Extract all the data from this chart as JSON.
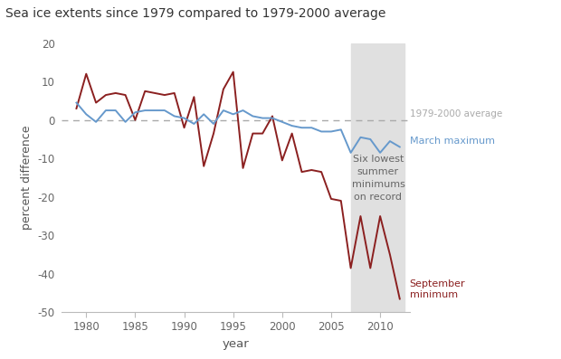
{
  "title": "Sea ice extents since 1979 compared to 1979-2000 average",
  "xlabel": "year",
  "ylabel": "percent difference",
  "ylim": [
    -50,
    20
  ],
  "yticks": [
    -50,
    -40,
    -30,
    -20,
    -10,
    0,
    10,
    20
  ],
  "background_color": "#ffffff",
  "march_color": "#6699cc",
  "september_color": "#8B2020",
  "avg_line_color": "#aaaaaa",
  "shade_start": 2007,
  "shade_end": 2012.5,
  "shade_color": "#e0e0e0",
  "march_years": [
    1979,
    1980,
    1981,
    1982,
    1983,
    1984,
    1985,
    1986,
    1987,
    1988,
    1989,
    1990,
    1991,
    1992,
    1993,
    1994,
    1995,
    1996,
    1997,
    1998,
    1999,
    2000,
    2001,
    2002,
    2003,
    2004,
    2005,
    2006,
    2007,
    2008,
    2009,
    2010,
    2011,
    2012
  ],
  "march_values": [
    4.5,
    1.5,
    -0.5,
    2.5,
    2.5,
    -0.5,
    2.0,
    2.5,
    2.5,
    2.5,
    1.0,
    0.5,
    -1.0,
    1.5,
    -1.0,
    2.5,
    1.5,
    2.5,
    1.0,
    0.5,
    0.5,
    -0.5,
    -1.5,
    -2.0,
    -2.0,
    -3.0,
    -3.0,
    -2.5,
    -8.5,
    -4.5,
    -5.0,
    -8.5,
    -5.5,
    -7.0
  ],
  "sept_years": [
    1979,
    1980,
    1981,
    1982,
    1983,
    1984,
    1985,
    1986,
    1987,
    1988,
    1989,
    1990,
    1991,
    1992,
    1993,
    1994,
    1995,
    1996,
    1997,
    1998,
    1999,
    2000,
    2001,
    2002,
    2003,
    2004,
    2005,
    2006,
    2007,
    2008,
    2009,
    2010,
    2011,
    2012
  ],
  "sept_values": [
    3.0,
    12.0,
    4.5,
    6.5,
    7.0,
    6.5,
    0.0,
    7.5,
    7.0,
    6.5,
    7.0,
    -2.0,
    6.0,
    -12.0,
    -3.5,
    8.0,
    12.5,
    -12.5,
    -3.5,
    -3.5,
    1.0,
    -10.5,
    -3.5,
    -13.5,
    -13.0,
    -13.5,
    -20.5,
    -21.0,
    -38.5,
    -25.0,
    -38.5,
    -25.0,
    -35.0,
    -46.5
  ],
  "annotation_text": "Six lowest\nsummer\nminimums\non record",
  "march_label": "March maximum",
  "sept_label": "September\nminimum",
  "avg_label": "1979-2000 average",
  "xticks": [
    1980,
    1985,
    1990,
    1995,
    2000,
    2005,
    2010
  ],
  "xlim": [
    1977.5,
    2013.0
  ]
}
